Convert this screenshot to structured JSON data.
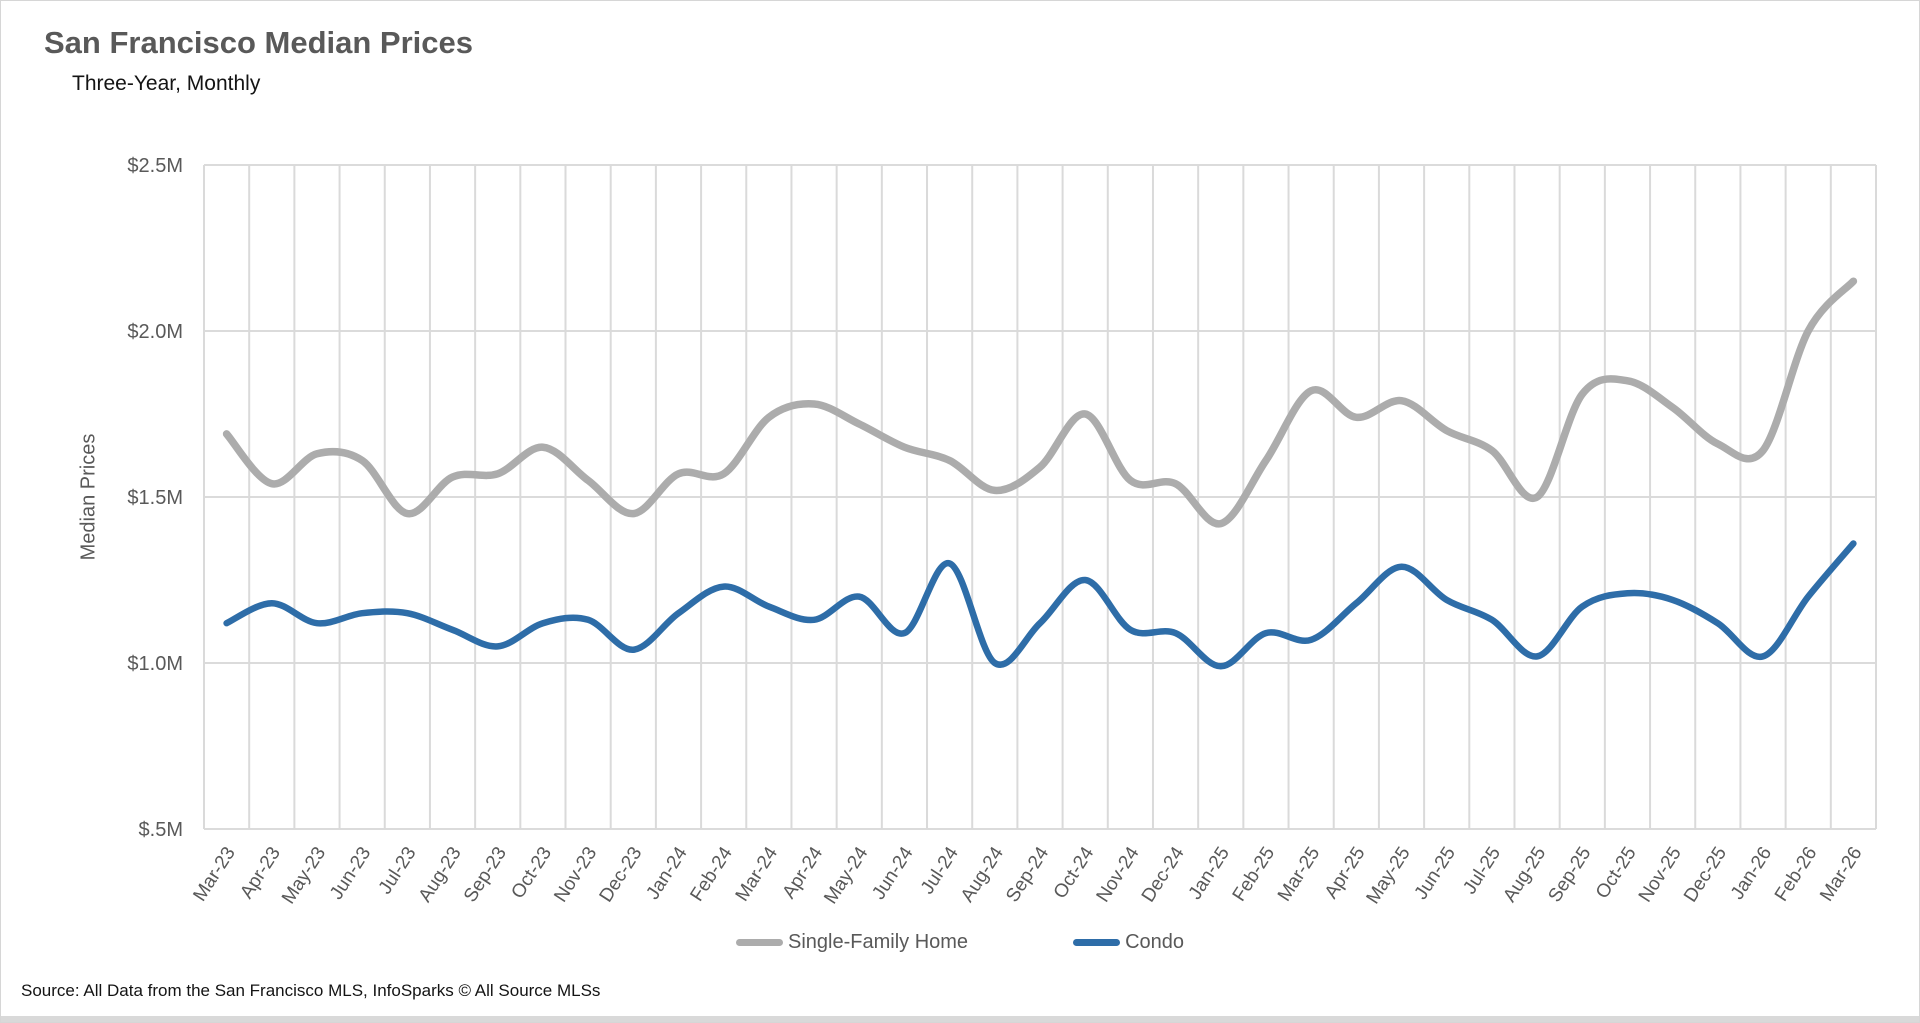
{
  "header": {
    "title": "San Francisco Median Prices",
    "subtitle": "Three-Year, Monthly"
  },
  "legend": {
    "items": [
      {
        "label": "Single-Family Home",
        "color": "#ACACAC"
      },
      {
        "label": "Condo",
        "color": "#2E6DA8"
      }
    ]
  },
  "footer": {
    "source": "Source: All Data from the San Francisco MLS, InfoSparks © All Source MLSs"
  },
  "chart_data": {
    "type": "line",
    "title": "San Francisco Median Prices",
    "subtitle": "Three-Year, Monthly",
    "ylabel": "Median Prices",
    "xlabel": "",
    "units": "USD millions",
    "grid": "both",
    "legend_position": "bottom",
    "ylim": [
      0.5,
      2.5
    ],
    "y_ticks": [
      {
        "v": 2.5,
        "label": "$2.5M"
      },
      {
        "v": 2.0,
        "label": "$2.0M"
      },
      {
        "v": 1.5,
        "label": "$1.5M"
      },
      {
        "v": 1.0,
        "label": "$1.0M"
      },
      {
        "v": 0.5,
        "label": "$.5M"
      }
    ],
    "categories": [
      "Mar-23",
      "Apr-23",
      "May-23",
      "Jun-23",
      "Jul-23",
      "Aug-23",
      "Sep-23",
      "Oct-23",
      "Nov-23",
      "Dec-23",
      "Jan-24",
      "Feb-24",
      "Mar-24",
      "Apr-24",
      "May-24",
      "Jun-24",
      "Jul-24",
      "Aug-24",
      "Sep-24",
      "Oct-24",
      "Nov-24",
      "Dec-24",
      "Jan-25",
      "Feb-25",
      "Mar-25",
      "Apr-25",
      "May-25",
      "Jun-25",
      "Jul-25",
      "Aug-25",
      "Sep-25",
      "Oct-25",
      "Nov-25",
      "Dec-25",
      "Jan-26",
      "Feb-26",
      "Mar-26"
    ],
    "series": [
      {
        "name": "Single-Family Home",
        "color": "#ACACAC",
        "stroke_width": 7.5,
        "values": [
          1.69,
          1.54,
          1.63,
          1.61,
          1.45,
          1.56,
          1.57,
          1.65,
          1.55,
          1.45,
          1.57,
          1.57,
          1.74,
          1.78,
          1.72,
          1.65,
          1.61,
          1.52,
          1.59,
          1.75,
          1.55,
          1.54,
          1.42,
          1.61,
          1.82,
          1.74,
          1.79,
          1.7,
          1.64,
          1.5,
          1.81,
          1.85,
          1.77,
          1.66,
          1.64,
          2.0,
          2.15
        ]
      },
      {
        "name": "Condo",
        "color": "#2E6DA8",
        "stroke_width": 6.5,
        "values": [
          1.12,
          1.18,
          1.12,
          1.15,
          1.15,
          1.1,
          1.05,
          1.12,
          1.13,
          1.04,
          1.15,
          1.23,
          1.17,
          1.13,
          1.2,
          1.09,
          1.3,
          1.0,
          1.12,
          1.25,
          1.1,
          1.09,
          0.99,
          1.09,
          1.07,
          1.18,
          1.29,
          1.19,
          1.13,
          1.02,
          1.17,
          1.21,
          1.19,
          1.12,
          1.02,
          1.2,
          1.36
        ]
      }
    ]
  }
}
